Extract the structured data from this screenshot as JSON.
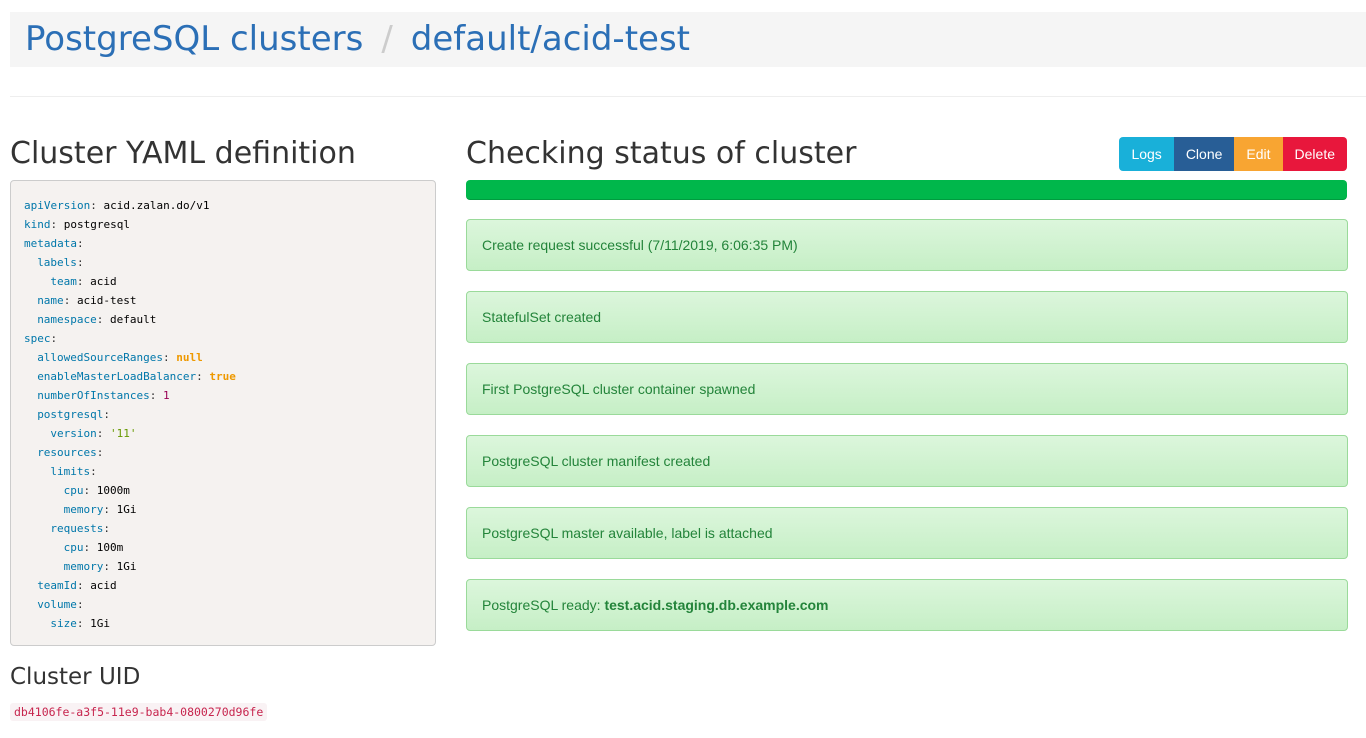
{
  "header": {
    "breadcrumb": [
      "PostgreSQL clusters",
      "default/acid-test"
    ],
    "separator": "/"
  },
  "yaml_section": {
    "title": "Cluster YAML definition",
    "yaml": [
      {
        "key": "apiVersion",
        "value": "acid.zalan.do/v1"
      },
      {
        "key": "kind",
        "value": "postgresql"
      },
      {
        "key": "metadata",
        "children": [
          {
            "key": "labels",
            "children": [
              {
                "key": "team",
                "value": "acid"
              }
            ]
          },
          {
            "key": "name",
            "value": "acid-test"
          },
          {
            "key": "namespace",
            "value": "default"
          }
        ]
      },
      {
        "key": "spec",
        "children": [
          {
            "key": "allowedSourceRanges",
            "value": "null",
            "kind": "keyword"
          },
          {
            "key": "enableMasterLoadBalancer",
            "value": "true",
            "kind": "keyword"
          },
          {
            "key": "numberOfInstances",
            "value": 1,
            "kind": "number"
          },
          {
            "key": "postgresql",
            "children": [
              {
                "key": "version",
                "value": "'11'",
                "kind": "string"
              }
            ]
          },
          {
            "key": "resources",
            "children": [
              {
                "key": "limits",
                "children": [
                  {
                    "key": "cpu",
                    "value": "1000m"
                  },
                  {
                    "key": "memory",
                    "value": "1Gi"
                  }
                ]
              },
              {
                "key": "requests",
                "children": [
                  {
                    "key": "cpu",
                    "value": "100m"
                  },
                  {
                    "key": "memory",
                    "value": "1Gi"
                  }
                ]
              }
            ]
          },
          {
            "key": "teamId",
            "value": "acid"
          },
          {
            "key": "volume",
            "children": [
              {
                "key": "size",
                "value": "1Gi"
              }
            ]
          }
        ]
      }
    ]
  },
  "uid_section": {
    "title": "Cluster UID",
    "uid": "db4106fe-a3f5-11e9-bab4-0800270d96fe"
  },
  "status_section": {
    "title": "Checking status of cluster",
    "buttons": [
      {
        "label": "Logs",
        "color": "#19b0d9"
      },
      {
        "label": "Clone",
        "color": "#285e96"
      },
      {
        "label": "Edit",
        "color": "#f8a532"
      },
      {
        "label": "Delete",
        "color": "#e8173c"
      }
    ],
    "messages": [
      {
        "text": "Create request successful (7/11/2019, 6:06:35 PM)"
      },
      {
        "text": "StatefulSet created"
      },
      {
        "text": "First PostgreSQL cluster container spawned"
      },
      {
        "text": "PostgreSQL cluster manifest created"
      },
      {
        "text": "PostgreSQL master available, label is attached"
      },
      {
        "text": "PostgreSQL ready: ",
        "strong": "test.acid.staging.db.example.com"
      }
    ]
  }
}
